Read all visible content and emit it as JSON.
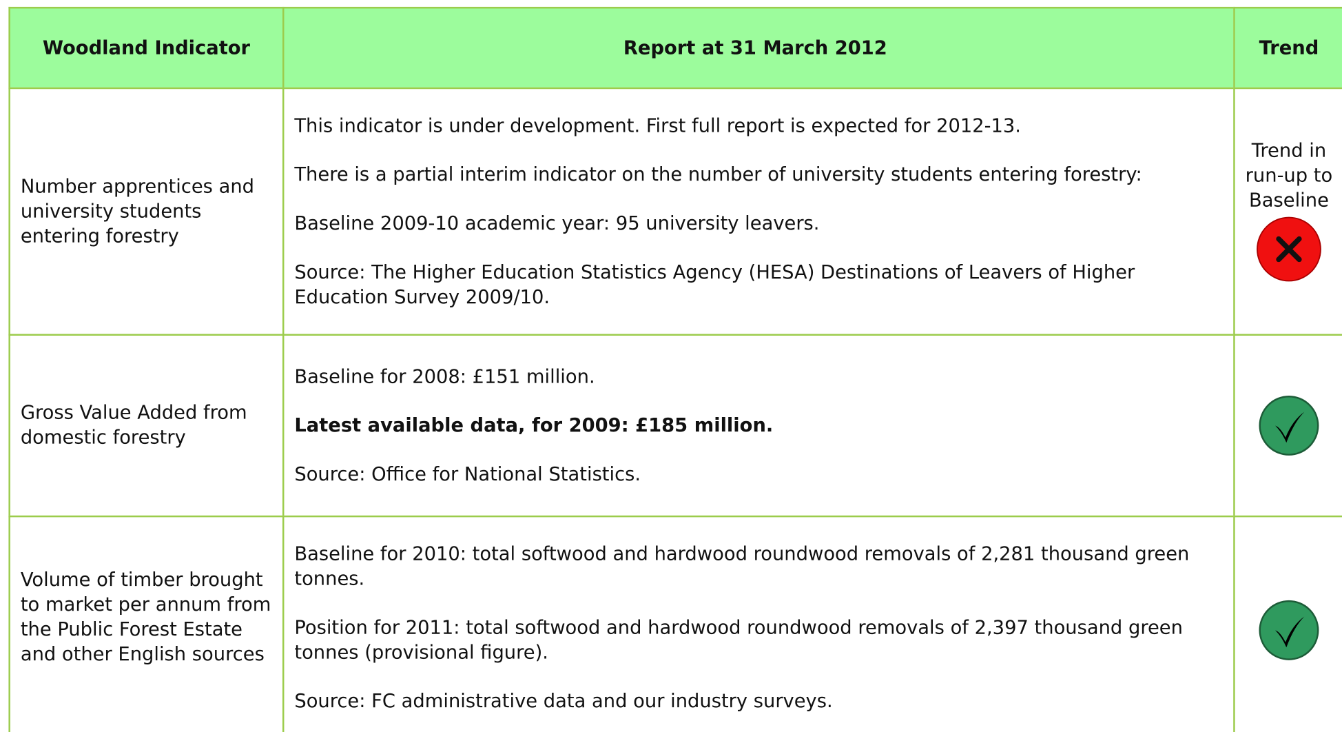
{
  "header": [
    "Woodland Indicator",
    "Report at 31 March 2012",
    "Trend"
  ],
  "rows": [
    {
      "indicator": "Number apprentices and university students entering forestry",
      "report": [
        {
          "text": "This indicator is under development. First full report is expected for 2012-13."
        },
        {
          "text": "There is a partial interim indicator on the number of university students entering forestry:"
        },
        {
          "text": "Baseline 2009-10 academic year: 95 university leavers."
        },
        {
          "text": "Source: The Higher Education Statistics Agency (HESA) Destinations of Leavers of Higher Education Survey 2009/10."
        }
      ],
      "trend": "Trend in run-up to Baseline"
    },
    {
      "indicator": "Gross Value Added from domestic forestry",
      "report": [
        {
          "text": "Baseline for 2008: £151 million."
        },
        {
          "text": "Latest available data, for 2009: £185 million.",
          "bold": true
        },
        {
          "text": "Source: Office for National Statistics."
        }
      ]
    },
    {
      "indicator": "Volume of timber brought to market per annum from the Public Forest Estate and other English sources",
      "report": [
        {
          "text": "Baseline for 2010: total softwood and hardwood roundwood removals of 2,281 thousand green tonnes."
        },
        {
          "text": "Position for 2011: total softwood and hardwood roundwood removals of 2,397 thousand green tonnes (provisional figure)."
        },
        {
          "text": "Source: FC administrative data and our industry surveys."
        }
      ]
    }
  ]
}
